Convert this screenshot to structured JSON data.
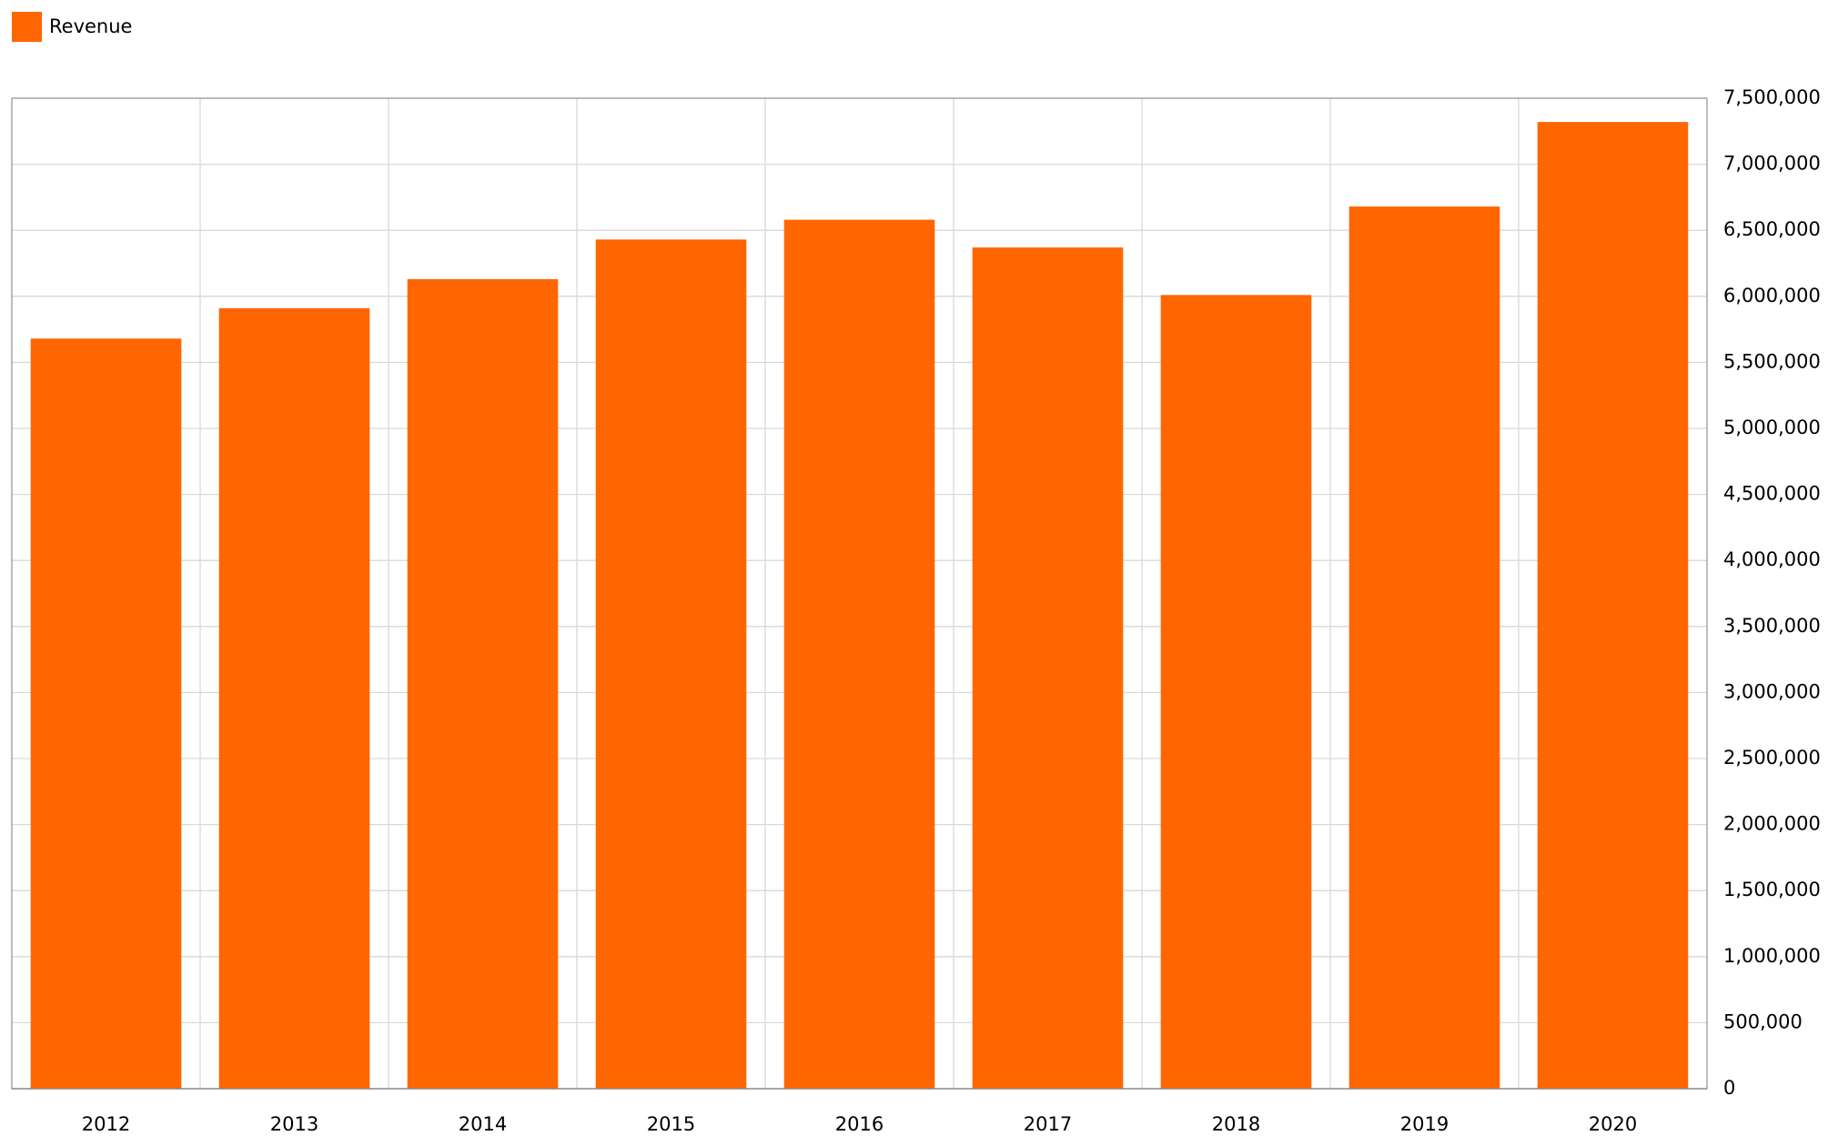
{
  "chart_data": {
    "type": "bar",
    "categories": [
      "2012",
      "2013",
      "2014",
      "2015",
      "2016",
      "2017",
      "2018",
      "2019",
      "2020"
    ],
    "series": [
      {
        "name": "Revenue",
        "color": "#ff6600",
        "values": [
          5680000,
          5910000,
          6130000,
          6430000,
          6580000,
          6370000,
          6010000,
          6680000,
          7320000
        ]
      }
    ],
    "ylim": [
      0,
      7500000
    ],
    "yticks": [
      0,
      {
        "value": 500000,
        "label": "500,000"
      },
      {
        "value": 1000000,
        "label": "1,000,000"
      },
      {
        "value": 1500000,
        "label": "1,500,000"
      },
      {
        "value": 2000000,
        "label": "2,000,000"
      },
      {
        "value": 2500000,
        "label": "2,500,000"
      },
      {
        "value": 3000000,
        "label": "3,000,000"
      },
      {
        "value": 3500000,
        "label": "3,500,000"
      },
      {
        "value": 4000000,
        "label": "4,000,000"
      },
      {
        "value": 4500000,
        "label": "4,500,000"
      },
      {
        "value": 5000000,
        "label": "5,000,000"
      },
      {
        "value": 5500000,
        "label": "5,500,000"
      },
      {
        "value": 6000000,
        "label": "6,000,000"
      },
      {
        "value": 6500000,
        "label": "6,500,000"
      },
      {
        "value": 7000000,
        "label": "7,000,000"
      },
      {
        "value": 7500000,
        "label": "7,500,000"
      }
    ],
    "grid": true,
    "y_axis_side": "right",
    "legend": "top-left"
  }
}
